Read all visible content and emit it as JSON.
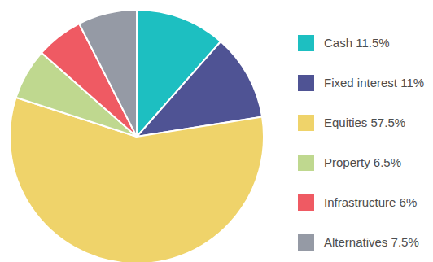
{
  "chart_data": {
    "type": "pie",
    "categories": [
      "Cash 11.5%",
      "Fixed interest 11%",
      "Equities 57.5%",
      "Property 6.5%",
      "Infrastructure 6%",
      "Alternatives 7.5%"
    ],
    "values": [
      11.5,
      11,
      57.5,
      6.5,
      6,
      7.5
    ],
    "colors": [
      "#1dbfc1",
      "#4f5394",
      "#efd36a",
      "#bfd88f",
      "#ef5a63",
      "#959aa5"
    ],
    "legend": "right"
  }
}
